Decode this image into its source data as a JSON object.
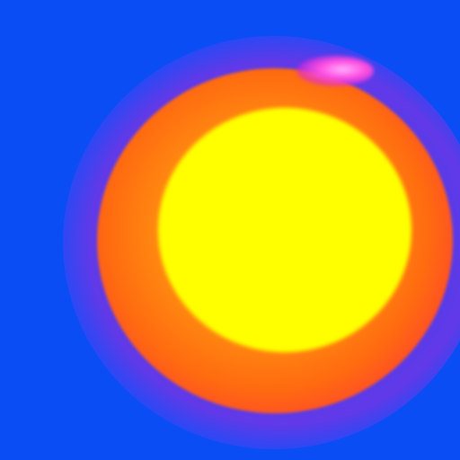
{
  "scene": {
    "description_colors": {
      "background": "#0a4df5",
      "outer_glow": "#c030d8",
      "disk": "#ff8c10",
      "core": "#ffff00",
      "flare": "#ff50e0"
    }
  }
}
